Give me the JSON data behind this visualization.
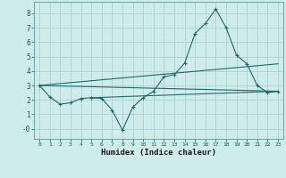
{
  "xlabel": "Humidex (Indice chaleur)",
  "xlim": [
    -0.5,
    23.5
  ],
  "ylim": [
    -0.7,
    8.8
  ],
  "yticks": [
    0,
    1,
    2,
    3,
    4,
    5,
    6,
    7,
    8
  ],
  "ytick_labels": [
    "-0",
    "1",
    "2",
    "3",
    "4",
    "5",
    "6",
    "7",
    "8"
  ],
  "xticks": [
    0,
    1,
    2,
    3,
    4,
    5,
    6,
    7,
    8,
    9,
    10,
    11,
    12,
    13,
    14,
    15,
    16,
    17,
    18,
    19,
    20,
    21,
    22,
    23
  ],
  "bg_color": "#ceecea",
  "line_color": "#1a6b6a",
  "grid_color": "#b0d0cc",
  "series": [
    [
      0,
      3.0
    ],
    [
      1,
      2.2
    ],
    [
      2,
      1.7
    ],
    [
      3,
      1.8
    ],
    [
      4,
      2.1
    ],
    [
      5,
      2.15
    ],
    [
      6,
      2.1
    ],
    [
      7,
      1.3
    ],
    [
      8,
      -0.1
    ],
    [
      9,
      1.5
    ],
    [
      10,
      2.15
    ],
    [
      11,
      2.6
    ],
    [
      12,
      3.6
    ],
    [
      13,
      3.75
    ],
    [
      14,
      4.55
    ],
    [
      15,
      6.6
    ],
    [
      16,
      7.3
    ],
    [
      17,
      8.3
    ],
    [
      18,
      7.0
    ],
    [
      19,
      5.1
    ],
    [
      20,
      4.5
    ],
    [
      21,
      3.0
    ],
    [
      22,
      2.5
    ],
    [
      23,
      2.6
    ]
  ],
  "line2": [
    [
      0,
      3.0
    ],
    [
      23,
      2.6
    ]
  ],
  "line3": [
    [
      0,
      3.0
    ],
    [
      23,
      4.5
    ]
  ],
  "line4": [
    [
      5,
      2.15
    ],
    [
      23,
      2.6
    ]
  ]
}
